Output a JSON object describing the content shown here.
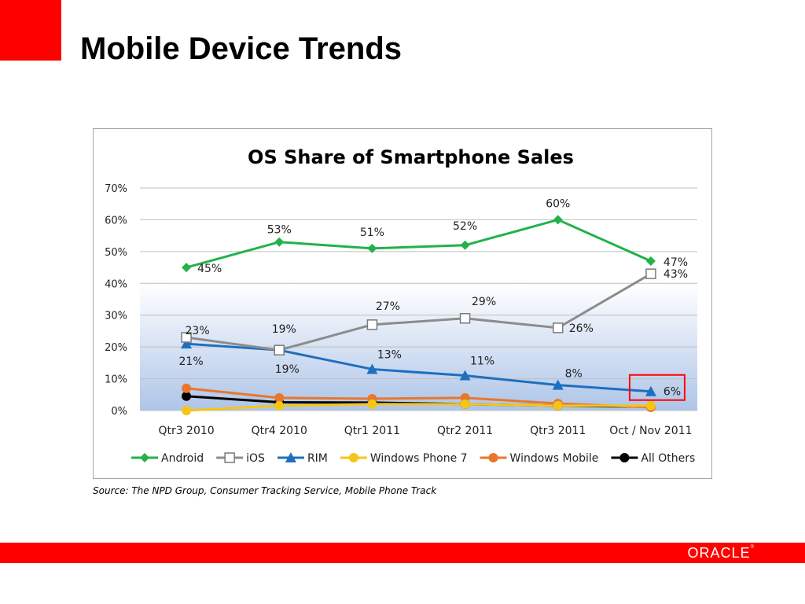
{
  "slide": {
    "title": "Mobile Device Trends",
    "source": "Source: The NPD Group, Consumer Tracking Service, Mobile Phone Track",
    "logo": "ORACLE",
    "accent_color": "#ff0000"
  },
  "chart_data": {
    "type": "line",
    "title": "OS Share of Smartphone Sales",
    "xlabel": "",
    "ylabel": "",
    "ylim": [
      0,
      70
    ],
    "yticks": [
      0,
      10,
      20,
      30,
      40,
      50,
      60,
      70
    ],
    "y_tick_labels": [
      "0%",
      "10%",
      "20%",
      "30%",
      "40%",
      "50%",
      "60%",
      "70%"
    ],
    "categories": [
      "Qtr3 2010",
      "Qtr4 2010",
      "Qtr1 2011",
      "Qtr2 2011",
      "Qtr3 2011",
      "Oct / Nov 2011"
    ],
    "grid": true,
    "legend": "bottom",
    "series": [
      {
        "name": "Android",
        "color": "#21b24b",
        "marker": "diamond",
        "values": [
          45,
          53,
          51,
          52,
          60,
          47
        ],
        "labels": [
          "45%",
          "53%",
          "51%",
          "52%",
          "60%",
          "47%"
        ]
      },
      {
        "name": "iOS",
        "color": "#8c8c8c",
        "marker": "square-open",
        "values": [
          23,
          19,
          27,
          29,
          26,
          43
        ],
        "labels": [
          "23%",
          "19%",
          "27%",
          "29%",
          "26%",
          "43%"
        ]
      },
      {
        "name": "RIM",
        "color": "#1f6fbf",
        "marker": "triangle",
        "values": [
          21,
          19,
          13,
          11,
          8,
          6
        ],
        "labels": [
          "21%",
          "19%",
          "13%",
          "11%",
          "8%",
          "6%"
        ]
      },
      {
        "name": "Windows Phone 7",
        "color": "#f5c518",
        "marker": "circle",
        "values": [
          0,
          1.5,
          2,
          2,
          1.5,
          1.5
        ],
        "labels": []
      },
      {
        "name": "Windows Mobile",
        "color": "#e8772e",
        "marker": "circle",
        "values": [
          7,
          4,
          3.7,
          4,
          2.2,
          1
        ],
        "labels": []
      },
      {
        "name": "All Others",
        "color": "#000000",
        "marker": "circle",
        "values": [
          4.5,
          2.6,
          2.5,
          2,
          1.5,
          1.2
        ],
        "labels": []
      }
    ],
    "highlight": {
      "series": "RIM",
      "category": "Oct / Nov 2011",
      "color": "#ff0000"
    }
  }
}
